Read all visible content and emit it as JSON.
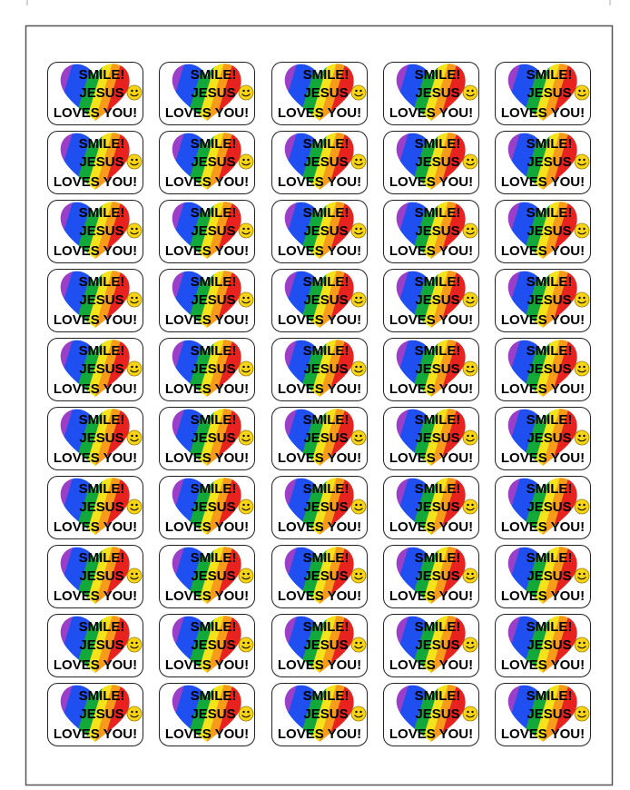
{
  "stickers": [
    {
      "lines": [
        "SMILE!",
        "JESUS",
        "LOVES YOU!"
      ]
    },
    {
      "lines": [
        "SMILE!",
        "JESUS",
        "LOVES YOU!"
      ]
    },
    {
      "lines": [
        "SMILE!",
        "JESUS",
        "LOVES YOU!"
      ]
    },
    {
      "lines": [
        "SMILE!",
        "JESUS",
        "LOVES YOU!"
      ]
    },
    {
      "lines": [
        "SMILE!",
        "JESUS",
        "LOVES YOU!"
      ]
    },
    {
      "lines": [
        "SMILE!",
        "JESUS",
        "LOVES YOU!"
      ]
    },
    {
      "lines": [
        "SMILE!",
        "JESUS",
        "LOVES YOU!"
      ]
    },
    {
      "lines": [
        "SMILE!",
        "JESUS",
        "LOVES YOU!"
      ]
    },
    {
      "lines": [
        "SMILE!",
        "JESUS",
        "LOVES YOU!"
      ]
    },
    {
      "lines": [
        "SMILE!",
        "JESUS",
        "LOVES YOU!"
      ]
    },
    {
      "lines": [
        "SMILE!",
        "JESUS",
        "LOVES YOU!"
      ]
    },
    {
      "lines": [
        "SMILE!",
        "JESUS",
        "LOVES YOU!"
      ]
    },
    {
      "lines": [
        "SMILE!",
        "JESUS",
        "LOVES YOU!"
      ]
    },
    {
      "lines": [
        "SMILE!",
        "JESUS",
        "LOVES YOU!"
      ]
    },
    {
      "lines": [
        "SMILE!",
        "JESUS",
        "LOVES YOU!"
      ]
    },
    {
      "lines": [
        "SMILE!",
        "JESUS",
        "LOVES YOU!"
      ]
    },
    {
      "lines": [
        "SMILE!",
        "JESUS",
        "LOVES YOU!"
      ]
    },
    {
      "lines": [
        "SMILE!",
        "JESUS",
        "LOVES YOU!"
      ]
    },
    {
      "lines": [
        "SMILE!",
        "JESUS",
        "LOVES YOU!"
      ]
    },
    {
      "lines": [
        "SMILE!",
        "JESUS",
        "LOVES YOU!"
      ]
    },
    {
      "lines": [
        "SMILE!",
        "JESUS",
        "LOVES YOU!"
      ]
    },
    {
      "lines": [
        "SMILE!",
        "JESUS",
        "LOVES YOU!"
      ]
    },
    {
      "lines": [
        "SMILE!",
        "JESUS",
        "LOVES YOU!"
      ]
    },
    {
      "lines": [
        "SMILE!",
        "JESUS",
        "LOVES YOU!"
      ]
    },
    {
      "lines": [
        "SMILE!",
        "JESUS",
        "LOVES YOU!"
      ]
    },
    {
      "lines": [
        "SMILE!",
        "JESUS",
        "LOVES YOU!"
      ]
    },
    {
      "lines": [
        "SMILE!",
        "JESUS",
        "LOVES YOU!"
      ]
    },
    {
      "lines": [
        "SMILE!",
        "JESUS",
        "LOVES YOU!"
      ]
    },
    {
      "lines": [
        "SMILE!",
        "JESUS",
        "LOVES YOU!"
      ]
    },
    {
      "lines": [
        "SMILE!",
        "JESUS",
        "LOVES YOU!"
      ]
    },
    {
      "lines": [
        "SMILE!",
        "JESUS",
        "LOVES YOU!"
      ]
    },
    {
      "lines": [
        "SMILE!",
        "JESUS",
        "LOVES YOU!"
      ]
    },
    {
      "lines": [
        "SMILE!",
        "JESUS",
        "LOVES YOU!"
      ]
    },
    {
      "lines": [
        "SMILE!",
        "JESUS",
        "LOVES YOU!"
      ]
    },
    {
      "lines": [
        "SMILE!",
        "JESUS",
        "LOVES YOU!"
      ]
    },
    {
      "lines": [
        "SMILE!",
        "JESUS",
        "LOVES YOU!"
      ]
    },
    {
      "lines": [
        "SMILE!",
        "JESUS",
        "LOVES YOU!"
      ]
    },
    {
      "lines": [
        "SMILE!",
        "JESUS",
        "LOVES YOU!"
      ]
    },
    {
      "lines": [
        "SMILE!",
        "JESUS",
        "LOVES YOU!"
      ]
    },
    {
      "lines": [
        "SMILE!",
        "JESUS",
        "LOVES YOU!"
      ]
    },
    {
      "lines": [
        "SMILE!",
        "JESUS",
        "LOVES YOU!"
      ]
    },
    {
      "lines": [
        "SMILE!",
        "JESUS",
        "LOVES YOU!"
      ]
    },
    {
      "lines": [
        "SMILE!",
        "JESUS",
        "LOVES YOU!"
      ]
    },
    {
      "lines": [
        "SMILE!",
        "JESUS",
        "LOVES YOU!"
      ]
    },
    {
      "lines": [
        "SMILE!",
        "JESUS",
        "LOVES YOU!"
      ]
    },
    {
      "lines": [
        "SMILE!",
        "JESUS",
        "LOVES YOU!"
      ]
    },
    {
      "lines": [
        "SMILE!",
        "JESUS",
        "LOVES YOU!"
      ]
    },
    {
      "lines": [
        "SMILE!",
        "JESUS",
        "LOVES YOU!"
      ]
    },
    {
      "lines": [
        "SMILE!",
        "JESUS",
        "LOVES YOU!"
      ]
    },
    {
      "lines": [
        "SMILE!",
        "JESUS",
        "LOVES YOU!"
      ]
    }
  ]
}
